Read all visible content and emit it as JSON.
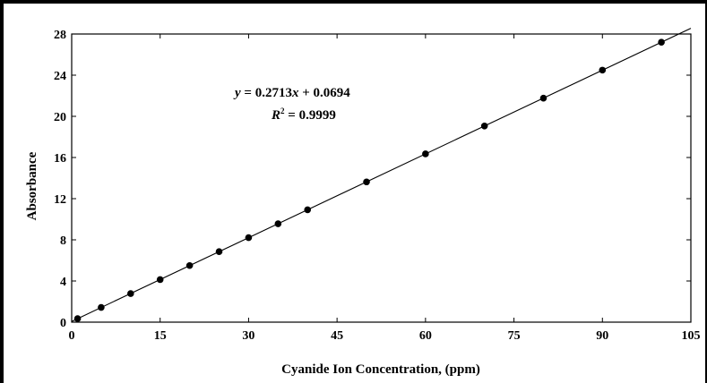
{
  "chart_data": {
    "type": "scatter",
    "xlabel": "Cyanide Ion Concentration, (ppm)",
    "ylabel": "Absorbance",
    "xlim": [
      0,
      105
    ],
    "ylim": [
      0,
      28
    ],
    "xticks": [
      0,
      15,
      30,
      45,
      60,
      75,
      90,
      105
    ],
    "yticks": [
      0,
      4,
      8,
      12,
      16,
      20,
      24,
      28
    ],
    "xtick_labels": [
      "0",
      "15",
      "30",
      "45",
      "60",
      "75",
      "90",
      "105"
    ],
    "ytick_labels": [
      "0",
      "4",
      "8",
      "12",
      "16",
      "20",
      "24",
      "28"
    ],
    "grid": false,
    "legend": "none",
    "series": [
      {
        "x": [
          1,
          5,
          10,
          15,
          20,
          25,
          30,
          35,
          40,
          50,
          60,
          70,
          80,
          90,
          100
        ],
        "y": [
          0.34,
          1.43,
          2.78,
          4.14,
          5.5,
          6.85,
          8.21,
          9.56,
          10.92,
          13.63,
          16.35,
          19.06,
          21.77,
          24.49,
          27.2
        ]
      }
    ],
    "trendline": {
      "slope": 0.2713,
      "intercept": 0.0694,
      "x_range": [
        0,
        105
      ],
      "equation_prefix": "y",
      "equation_rhs": "= 0.2713x + 0.0694",
      "equation_x": "x",
      "equation_tail": " + 0.0694",
      "equation_coef": "= 0.2713",
      "r2_prefix": "R",
      "r2_sup": "2",
      "r2_value": " = 0.9999"
    },
    "colors": {
      "marker": "#000000",
      "line": "#000000",
      "axis": "#000000"
    }
  }
}
